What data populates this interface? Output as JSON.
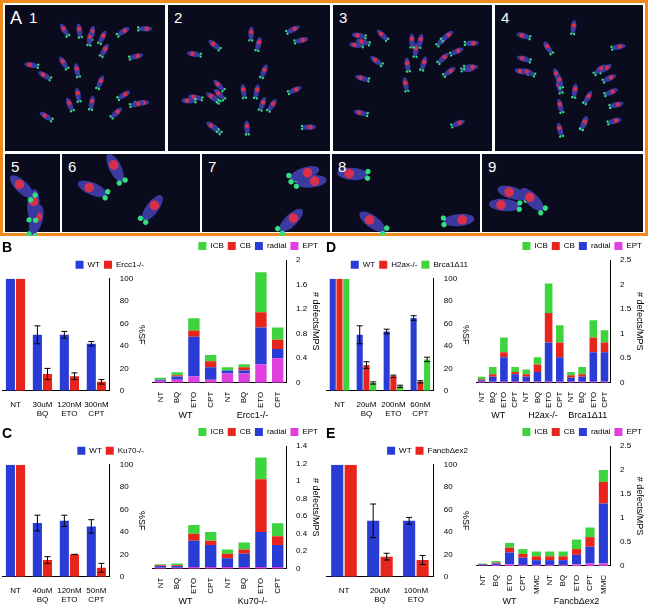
{
  "panel_a": {
    "label": "A",
    "images": [
      "1",
      "2",
      "3",
      "4",
      "5",
      "6",
      "7",
      "8",
      "9"
    ]
  },
  "chart_data": [
    {
      "type": "bar",
      "title": "B",
      "ylabel": "%SF",
      "legend": "top",
      "grid": false,
      "categories": [
        "NT",
        "30uM BQ",
        "120nM ETO",
        "300nM CPT"
      ],
      "series": [
        {
          "name": "WT",
          "color": "#2a3cd6",
          "values": [
            100,
            50,
            50,
            42
          ],
          "errors": [
            null,
            8,
            3,
            2
          ]
        },
        {
          "name": "Ercc1-/-",
          "color": "#e8251c",
          "values": [
            100,
            15,
            13,
            8
          ],
          "errors": [
            null,
            5,
            3,
            2
          ]
        }
      ],
      "ylim": [
        0,
        100
      ],
      "yticks": [
        0,
        20,
        40,
        60,
        80,
        100
      ]
    },
    {
      "type": "bar",
      "ylabel": "# defects/MPS",
      "legend": "top",
      "grid": false,
      "stacked": true,
      "groups": [
        {
          "label": "WT",
          "categories": [
            "NT",
            "BQ",
            "ETO",
            "CPT"
          ]
        },
        {
          "label": "Ercc1-/-",
          "categories": [
            "NT",
            "BQ",
            "ETO",
            "CPT"
          ]
        }
      ],
      "series": [
        {
          "name": "EPT",
          "color": "#e040e0",
          "values": [
            0.03,
            0.05,
            0.1,
            0.05,
            0.15,
            0.15,
            0.3,
            0.4
          ]
        },
        {
          "name": "radial",
          "color": "#2a3cd6",
          "values": [
            0.02,
            0.05,
            0.65,
            0.2,
            0.05,
            0.05,
            0.6,
            0.15
          ]
        },
        {
          "name": "CB",
          "color": "#e8251c",
          "values": [
            0,
            0.02,
            0.1,
            0.1,
            0,
            0.05,
            0.25,
            0.15
          ]
        },
        {
          "name": "ICB",
          "color": "#3ed43e",
          "values": [
            0.03,
            0.05,
            0.2,
            0.1,
            0.05,
            0.05,
            0.65,
            0.2
          ]
        }
      ],
      "ylim": [
        0,
        2
      ],
      "yticks": [
        0,
        0.4,
        0.8,
        1.2,
        1.6,
        2
      ]
    },
    {
      "type": "bar",
      "title": "D",
      "ylabel": "%SF",
      "legend": "top",
      "grid": false,
      "categories": [
        "NT",
        "20uM BQ",
        "200nM ETO",
        "60nM CPT"
      ],
      "series": [
        {
          "name": "WT",
          "color": "#2a3cd6",
          "values": [
            100,
            50,
            53,
            65
          ],
          "errors": [
            null,
            8,
            2,
            2
          ]
        },
        {
          "name": "H2ax-/-",
          "color": "#e8251c",
          "values": [
            100,
            23,
            13,
            8
          ],
          "errors": [
            null,
            3,
            1,
            1
          ]
        },
        {
          "name": "Brca1Δ11",
          "color": "#3ed43e",
          "values": [
            100,
            7,
            4,
            28
          ],
          "errors": [
            null,
            1,
            1,
            2
          ]
        }
      ],
      "ylim": [
        0,
        100
      ],
      "yticks": [
        0,
        20,
        40,
        60,
        80,
        100
      ]
    },
    {
      "type": "bar",
      "ylabel": "# defects/MPS",
      "legend": "top",
      "grid": false,
      "stacked": true,
      "groups": [
        {
          "label": "WT",
          "categories": [
            "NT",
            "BQ",
            "ETO",
            "CPT"
          ]
        },
        {
          "label": "H2ax-/-",
          "categories": [
            "NT",
            "BQ",
            "ETO",
            "CPT"
          ]
        },
        {
          "label": "Brca1Δ11",
          "categories": [
            "NT",
            "BQ",
            "ETO",
            "CPT"
          ]
        }
      ],
      "series": [
        {
          "name": "EPT",
          "color": "#e040e0",
          "values": [
            0.02,
            0.02,
            0.02,
            0.02,
            0.02,
            0.02,
            0.02,
            0.02,
            0.02,
            0.02,
            0.02,
            0.02
          ]
        },
        {
          "name": "radial",
          "color": "#2a3cd6",
          "values": [
            0.03,
            0.1,
            0.5,
            0.15,
            0.1,
            0.2,
            0.8,
            0.5,
            0.08,
            0.1,
            0.6,
            0.6
          ]
        },
        {
          "name": "CB",
          "color": "#e8251c",
          "values": [
            0.02,
            0.05,
            0.1,
            0.05,
            0.05,
            0.15,
            0.6,
            0.3,
            0.05,
            0.05,
            0.3,
            0.2
          ]
        },
        {
          "name": "ICB",
          "color": "#3ed43e",
          "values": [
            0.05,
            0.15,
            0.3,
            0.1,
            0.1,
            0.15,
            0.6,
            0.35,
            0.07,
            0.15,
            0.35,
            0.25
          ]
        }
      ],
      "ylim": [
        0,
        2.5
      ],
      "yticks": [
        0,
        0.5,
        1,
        1.5,
        2,
        2.5
      ]
    },
    {
      "type": "bar",
      "title": "C",
      "ylabel": "%SF",
      "legend": "top",
      "grid": false,
      "categories": [
        "NT",
        "40uM BQ",
        "120nM ETO",
        "50nM CPT"
      ],
      "series": [
        {
          "name": "WT",
          "color": "#2a3cd6",
          "values": [
            100,
            48,
            50,
            45
          ],
          "errors": [
            null,
            7,
            5,
            6
          ]
        },
        {
          "name": "Ku70-/-",
          "color": "#e8251c",
          "values": [
            100,
            15,
            20,
            8
          ],
          "errors": [
            null,
            3,
            0,
            4
          ]
        }
      ],
      "ylim": [
        0,
        100
      ],
      "yticks": [
        0,
        20,
        40,
        60,
        80,
        100
      ]
    },
    {
      "type": "bar",
      "ylabel": "# defects/MPS",
      "legend": "top",
      "grid": false,
      "stacked": true,
      "groups": [
        {
          "label": "WT",
          "categories": [
            "NT",
            "BQ",
            "ETO",
            "CPT"
          ]
        },
        {
          "label": "Ku70-/-",
          "categories": [
            "NT",
            "BQ",
            "ETO",
            "CPT"
          ]
        }
      ],
      "series": [
        {
          "name": "EPT",
          "color": "#e040e0",
          "values": [
            0.01,
            0.01,
            0.02,
            0.02,
            0.02,
            0.02,
            0.02,
            0.02
          ]
        },
        {
          "name": "radial",
          "color": "#2a3cd6",
          "values": [
            0.02,
            0.02,
            0.3,
            0.25,
            0.1,
            0.15,
            0.4,
            0.25
          ]
        },
        {
          "name": "CB",
          "color": "#e8251c",
          "values": [
            0.01,
            0.01,
            0.08,
            0.05,
            0.05,
            0.05,
            0.6,
            0.1
          ]
        },
        {
          "name": "ICB",
          "color": "#3ed43e",
          "values": [
            0.01,
            0.02,
            0.1,
            0.1,
            0.05,
            0.08,
            0.25,
            0.15
          ]
        }
      ],
      "ylim": [
        0,
        1.4
      ],
      "yticks": [
        0,
        0.2,
        0.4,
        0.6,
        0.8,
        1,
        1.2,
        1.4
      ]
    },
    {
      "type": "bar",
      "title": "E",
      "ylabel": "%SF",
      "legend": "top",
      "grid": false,
      "categories": [
        "NT",
        "20uM BQ",
        "100nM ETO"
      ],
      "series": [
        {
          "name": "WT",
          "color": "#2a3cd6",
          "values": [
            100,
            50,
            50
          ],
          "errors": [
            null,
            15,
            3
          ]
        },
        {
          "name": "FancbΔex2",
          "color": "#e8251c",
          "values": [
            100,
            18,
            15
          ],
          "errors": [
            null,
            3,
            4
          ]
        }
      ],
      "ylim": [
        0,
        100
      ],
      "yticks": [
        0,
        20,
        40,
        60,
        80,
        100
      ]
    },
    {
      "type": "bar",
      "ylabel": "# defects/MPS",
      "legend": "top",
      "grid": false,
      "stacked": true,
      "groups": [
        {
          "label": "WT",
          "categories": [
            "NT",
            "BQ",
            "ETO",
            "CPT",
            "MMC"
          ]
        },
        {
          "label": "FancbΔex2",
          "categories": [
            "NT",
            "BQ",
            "ETO",
            "CPT",
            "MMC"
          ]
        }
      ],
      "series": [
        {
          "name": "EPT",
          "color": "#e040e0",
          "values": [
            0.01,
            0.02,
            0.03,
            0.02,
            0.02,
            0.02,
            0.02,
            0.03,
            0.05,
            0.05
          ]
        },
        {
          "name": "radial",
          "color": "#2a3cd6",
          "values": [
            0.02,
            0.03,
            0.25,
            0.15,
            0.1,
            0.1,
            0.1,
            0.2,
            0.35,
            1.25
          ]
        },
        {
          "name": "CB",
          "color": "#e8251c",
          "values": [
            0.01,
            0.02,
            0.1,
            0.08,
            0.08,
            0.08,
            0.08,
            0.12,
            0.2,
            0.45
          ]
        },
        {
          "name": "ICB",
          "color": "#3ed43e",
          "values": [
            0.01,
            0.03,
            0.1,
            0.1,
            0.1,
            0.1,
            0.1,
            0.2,
            0.2,
            0.25
          ]
        }
      ],
      "ylim": [
        0,
        2.5
      ],
      "yticks": [
        0,
        0.5,
        1,
        1.5,
        2,
        2.5
      ]
    }
  ]
}
